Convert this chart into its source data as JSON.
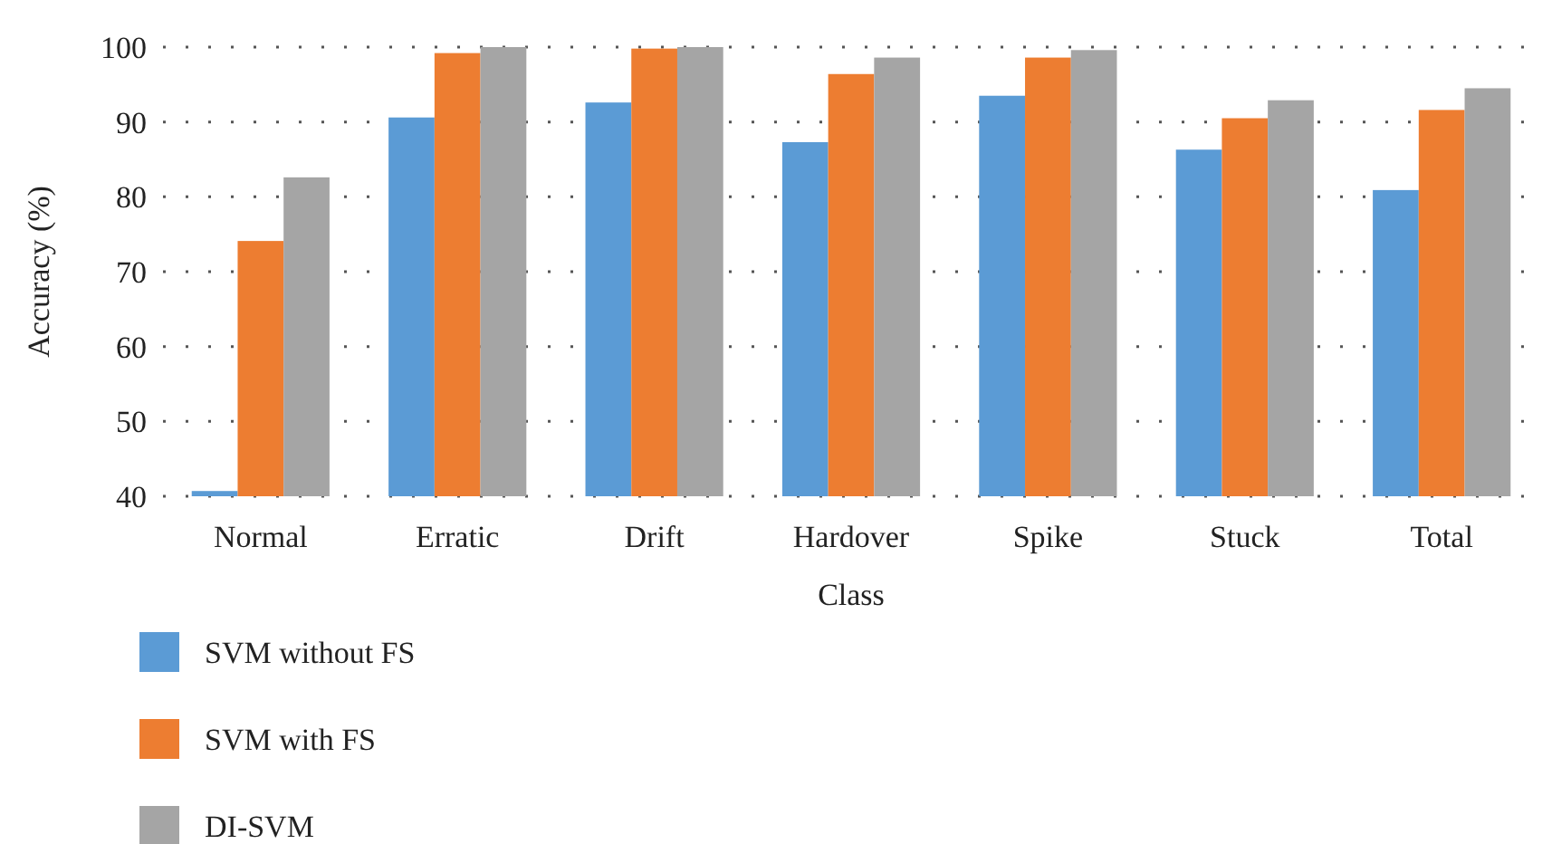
{
  "chart_data": {
    "type": "bar",
    "xlabel": "Class",
    "ylabel": "Accuracy (%)",
    "categories": [
      "Normal",
      "Erratic",
      "Drift",
      "Hardover",
      "Spike",
      "Stuck",
      "Total"
    ],
    "series": [
      {
        "name": "SVM without FS",
        "color": "#5b9bd5",
        "values": [
          40.7,
          90.6,
          92.6,
          87.3,
          93.5,
          86.3,
          80.9
        ]
      },
      {
        "name": "SVM with FS",
        "color": "#ed7d31",
        "values": [
          74.1,
          99.2,
          99.8,
          96.4,
          98.6,
          90.5,
          91.6
        ]
      },
      {
        "name": "DI-SVM",
        "color": "#a5a5a5",
        "values": [
          82.6,
          100,
          100,
          98.6,
          99.6,
          92.9,
          94.5
        ]
      }
    ],
    "ylim": [
      40,
      100
    ],
    "yticks": [
      40,
      50,
      60,
      70,
      80,
      90,
      100
    ],
    "grid": "y",
    "legend": "bottom left"
  }
}
